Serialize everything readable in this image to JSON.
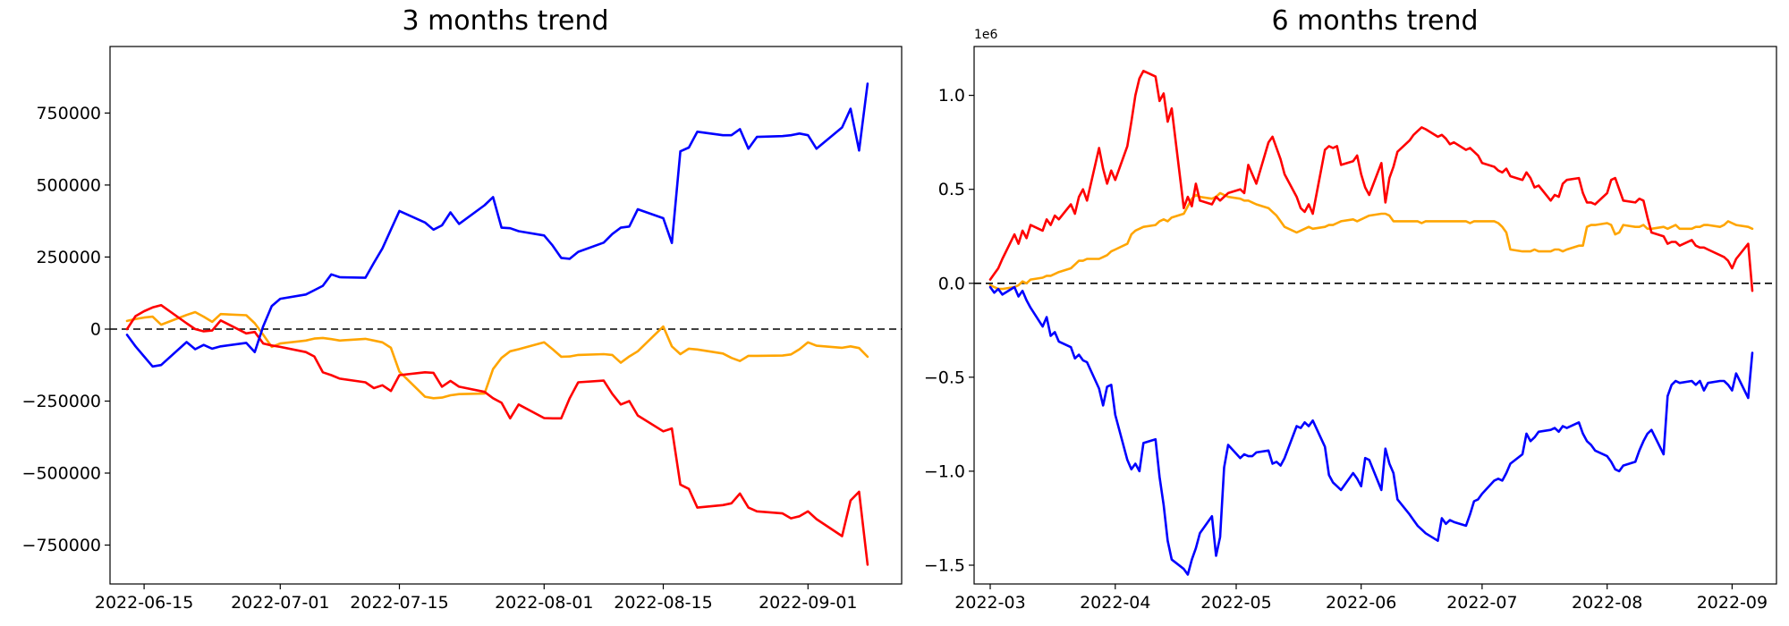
{
  "page": {
    "background_color": "#ffffff",
    "text_color": "#000000"
  },
  "chart_data": [
    {
      "type": "line",
      "title": "3 months trend",
      "xlabel": "",
      "ylabel": "",
      "legend": "none",
      "grid": false,
      "zero_line": {
        "value": 0,
        "style": "dashed",
        "color": "#000000"
      },
      "y_unit": 1,
      "y_axis_offset_label": "",
      "ylim": [
        -885000,
        981000
      ],
      "xlim": [
        "2022-06-11",
        "2022-09-12"
      ],
      "x_ticks": [
        {
          "date": "2022-06-15",
          "label": "2022-06-15"
        },
        {
          "date": "2022-07-01",
          "label": "2022-07-01"
        },
        {
          "date": "2022-07-15",
          "label": "2022-07-15"
        },
        {
          "date": "2022-08-01",
          "label": "2022-08-01"
        },
        {
          "date": "2022-08-15",
          "label": "2022-08-15"
        },
        {
          "date": "2022-09-01",
          "label": "2022-09-01"
        }
      ],
      "y_ticks": [
        {
          "value": 750000,
          "label": "750000"
        },
        {
          "value": 500000,
          "label": "500000"
        },
        {
          "value": 250000,
          "label": "250000"
        },
        {
          "value": 0,
          "label": "0"
        },
        {
          "value": -250000,
          "label": "−250000"
        },
        {
          "value": -500000,
          "label": "−500000"
        },
        {
          "value": -750000,
          "label": "−750000"
        }
      ],
      "dates": [
        "2022-06-13",
        "2022-06-14",
        "2022-06-15",
        "2022-06-16",
        "2022-06-17",
        "2022-06-20",
        "2022-06-21",
        "2022-06-22",
        "2022-06-23",
        "2022-06-24",
        "2022-06-27",
        "2022-06-28",
        "2022-06-29",
        "2022-06-30",
        "2022-07-01",
        "2022-07-04",
        "2022-07-05",
        "2022-07-06",
        "2022-07-07",
        "2022-07-08",
        "2022-07-11",
        "2022-07-12",
        "2022-07-13",
        "2022-07-14",
        "2022-07-15",
        "2022-07-18",
        "2022-07-19",
        "2022-07-20",
        "2022-07-21",
        "2022-07-22",
        "2022-07-25",
        "2022-07-26",
        "2022-07-27",
        "2022-07-28",
        "2022-07-29",
        "2022-08-01",
        "2022-08-02",
        "2022-08-03",
        "2022-08-04",
        "2022-08-05",
        "2022-08-08",
        "2022-08-09",
        "2022-08-10",
        "2022-08-11",
        "2022-08-12",
        "2022-08-15",
        "2022-08-16",
        "2022-08-17",
        "2022-08-18",
        "2022-08-19",
        "2022-08-22",
        "2022-08-23",
        "2022-08-24",
        "2022-08-25",
        "2022-08-26",
        "2022-08-29",
        "2022-08-30",
        "2022-08-31",
        "2022-09-01",
        "2022-09-02",
        "2022-09-05",
        "2022-09-06",
        "2022-09-07",
        "2022-09-08"
      ],
      "series": [
        {
          "name": "series-orange",
          "color": "#FFA500",
          "values": [
            28000,
            35000,
            40000,
            43000,
            15000,
            49000,
            59000,
            43000,
            25000,
            52000,
            48000,
            20000,
            -20000,
            -62000,
            -50000,
            -40000,
            -33000,
            -31000,
            -35000,
            -40000,
            -34000,
            -40000,
            -46000,
            -65000,
            -148000,
            -235000,
            -240000,
            -238000,
            -230000,
            -226000,
            -224000,
            -139000,
            -100000,
            -77000,
            -70000,
            -46000,
            -70000,
            -96000,
            -95000,
            -90000,
            -87000,
            -90000,
            -117000,
            -95000,
            -77000,
            9000,
            -60000,
            -87000,
            -68000,
            -71000,
            -85000,
            -100000,
            -111000,
            -93000,
            -93000,
            -92000,
            -88000,
            -70000,
            -46000,
            -58000,
            -65000,
            -60000,
            -66000,
            -96000
          ]
        },
        {
          "name": "series-red",
          "color": "#FF0000",
          "values": [
            0,
            45000,
            62000,
            75000,
            83000,
            20000,
            0,
            -8000,
            -5000,
            30000,
            -15000,
            -10000,
            -50000,
            -57000,
            -62000,
            -80000,
            -95000,
            -150000,
            -160000,
            -172000,
            -185000,
            -205000,
            -195000,
            -215000,
            -160000,
            -150000,
            -152000,
            -200000,
            -180000,
            -200000,
            -218000,
            -240000,
            -256000,
            -310000,
            -262000,
            -309000,
            -310000,
            -310000,
            -240000,
            -185000,
            -179000,
            -225000,
            -262000,
            -250000,
            -300000,
            -355000,
            -345000,
            -540000,
            -555000,
            -620000,
            -611000,
            -605000,
            -571000,
            -620000,
            -633000,
            -640000,
            -657000,
            -650000,
            -633000,
            -660000,
            -719000,
            -595000,
            -565000,
            -818000
          ]
        },
        {
          "name": "series-blue",
          "color": "#0000FF",
          "values": [
            -20000,
            -60000,
            -95000,
            -130000,
            -125000,
            -45000,
            -70000,
            -55000,
            -68000,
            -60000,
            -48000,
            -80000,
            10000,
            80000,
            105000,
            120000,
            135000,
            150000,
            190000,
            180000,
            178000,
            230000,
            280000,
            345000,
            410000,
            370000,
            345000,
            360000,
            405000,
            365000,
            430000,
            458000,
            352000,
            350000,
            340000,
            325000,
            290000,
            247000,
            244000,
            268000,
            300000,
            330000,
            352000,
            356000,
            416000,
            385000,
            299000,
            617000,
            630000,
            685000,
            673000,
            673000,
            694000,
            626000,
            667000,
            670000,
            673000,
            679000,
            673000,
            626000,
            700000,
            765000,
            620000,
            852000
          ]
        }
      ]
    },
    {
      "type": "line",
      "title": "6 months trend",
      "xlabel": "",
      "ylabel": "",
      "legend": "none",
      "grid": false,
      "zero_line": {
        "value": 0,
        "style": "dashed",
        "color": "#000000"
      },
      "y_unit": 1000000,
      "y_axis_offset_label": "1e6",
      "ylim": [
        -1600000,
        1260000
      ],
      "xlim": [
        "2022-02-25",
        "2022-09-12"
      ],
      "x_ticks": [
        {
          "date": "2022-03-01",
          "label": "2022-03"
        },
        {
          "date": "2022-04-01",
          "label": "2022-04"
        },
        {
          "date": "2022-05-01",
          "label": "2022-05"
        },
        {
          "date": "2022-06-01",
          "label": "2022-06"
        },
        {
          "date": "2022-07-01",
          "label": "2022-07"
        },
        {
          "date": "2022-08-01",
          "label": "2022-08"
        },
        {
          "date": "2022-09-01",
          "label": "2022-09"
        }
      ],
      "y_ticks": [
        {
          "value": 1000000,
          "label": "1.0"
        },
        {
          "value": 500000,
          "label": "0.5"
        },
        {
          "value": 0,
          "label": "0.0"
        },
        {
          "value": -500000,
          "label": "−0.5"
        },
        {
          "value": -1000000,
          "label": "−1.0"
        },
        {
          "value": -1500000,
          "label": "−1.5"
        }
      ],
      "dates": [
        "2022-03-01",
        "2022-03-02",
        "2022-03-03",
        "2022-03-04",
        "2022-03-07",
        "2022-03-08",
        "2022-03-09",
        "2022-03-10",
        "2022-03-11",
        "2022-03-14",
        "2022-03-15",
        "2022-03-16",
        "2022-03-17",
        "2022-03-18",
        "2022-03-21",
        "2022-03-22",
        "2022-03-23",
        "2022-03-24",
        "2022-03-25",
        "2022-03-28",
        "2022-03-29",
        "2022-03-30",
        "2022-03-31",
        "2022-04-01",
        "2022-04-04",
        "2022-04-05",
        "2022-04-06",
        "2022-04-07",
        "2022-04-08",
        "2022-04-11",
        "2022-04-12",
        "2022-04-13",
        "2022-04-14",
        "2022-04-15",
        "2022-04-18",
        "2022-04-19",
        "2022-04-20",
        "2022-04-21",
        "2022-04-22",
        "2022-04-25",
        "2022-04-26",
        "2022-04-27",
        "2022-04-28",
        "2022-04-29",
        "2022-05-02",
        "2022-05-03",
        "2022-05-04",
        "2022-05-05",
        "2022-05-06",
        "2022-05-09",
        "2022-05-10",
        "2022-05-11",
        "2022-05-12",
        "2022-05-13",
        "2022-05-16",
        "2022-05-17",
        "2022-05-18",
        "2022-05-19",
        "2022-05-20",
        "2022-05-23",
        "2022-05-24",
        "2022-05-25",
        "2022-05-26",
        "2022-05-27",
        "2022-05-30",
        "2022-05-31",
        "2022-06-01",
        "2022-06-02",
        "2022-06-03",
        "2022-06-06",
        "2022-06-07",
        "2022-06-08",
        "2022-06-09",
        "2022-06-10",
        "2022-06-13",
        "2022-06-14",
        "2022-06-15",
        "2022-06-16",
        "2022-06-17",
        "2022-06-20",
        "2022-06-21",
        "2022-06-22",
        "2022-06-23",
        "2022-06-24",
        "2022-06-27",
        "2022-06-28",
        "2022-06-29",
        "2022-06-30",
        "2022-07-01",
        "2022-07-04",
        "2022-07-05",
        "2022-07-06",
        "2022-07-07",
        "2022-07-08",
        "2022-07-11",
        "2022-07-12",
        "2022-07-13",
        "2022-07-14",
        "2022-07-15",
        "2022-07-18",
        "2022-07-19",
        "2022-07-20",
        "2022-07-21",
        "2022-07-22",
        "2022-07-25",
        "2022-07-26",
        "2022-07-27",
        "2022-07-28",
        "2022-07-29",
        "2022-08-01",
        "2022-08-02",
        "2022-08-03",
        "2022-08-04",
        "2022-08-05",
        "2022-08-08",
        "2022-08-09",
        "2022-08-10",
        "2022-08-11",
        "2022-08-12",
        "2022-08-15",
        "2022-08-16",
        "2022-08-17",
        "2022-08-18",
        "2022-08-19",
        "2022-08-22",
        "2022-08-23",
        "2022-08-24",
        "2022-08-25",
        "2022-08-26",
        "2022-08-29",
        "2022-08-30",
        "2022-08-31",
        "2022-09-01",
        "2022-09-02",
        "2022-09-05",
        "2022-09-06"
      ],
      "series": [
        {
          "name": "series-orange",
          "color": "#FFA500",
          "values": [
            -0.01,
            -0.02,
            -0.03,
            -0.03,
            -0.02,
            -0.01,
            0.01,
            0.0,
            0.02,
            0.03,
            0.04,
            0.04,
            0.05,
            0.06,
            0.08,
            0.1,
            0.12,
            0.12,
            0.13,
            0.13,
            0.14,
            0.15,
            0.17,
            0.18,
            0.21,
            0.26,
            0.28,
            0.29,
            0.3,
            0.31,
            0.33,
            0.34,
            0.33,
            0.35,
            0.37,
            0.41,
            0.45,
            0.47,
            0.46,
            0.45,
            0.46,
            0.48,
            0.47,
            0.46,
            0.45,
            0.44,
            0.44,
            0.43,
            0.42,
            0.4,
            0.38,
            0.36,
            0.33,
            0.3,
            0.27,
            0.28,
            0.29,
            0.3,
            0.29,
            0.3,
            0.31,
            0.31,
            0.32,
            0.33,
            0.34,
            0.33,
            0.34,
            0.35,
            0.36,
            0.37,
            0.37,
            0.36,
            0.33,
            0.33,
            0.33,
            0.33,
            0.33,
            0.32,
            0.33,
            0.33,
            0.33,
            0.33,
            0.33,
            0.33,
            0.33,
            0.32,
            0.33,
            0.33,
            0.33,
            0.33,
            0.32,
            0.3,
            0.27,
            0.18,
            0.17,
            0.17,
            0.17,
            0.18,
            0.17,
            0.17,
            0.18,
            0.18,
            0.17,
            0.18,
            0.2,
            0.2,
            0.3,
            0.31,
            0.31,
            0.32,
            0.31,
            0.26,
            0.27,
            0.31,
            0.3,
            0.3,
            0.31,
            0.29,
            0.29,
            0.3,
            0.29,
            0.3,
            0.31,
            0.29,
            0.29,
            0.3,
            0.3,
            0.31,
            0.31,
            0.3,
            0.31,
            0.33,
            0.32,
            0.31,
            0.3,
            0.29
          ]
        },
        {
          "name": "series-red",
          "color": "#FF0000",
          "values": [
            0.02,
            0.05,
            0.08,
            0.13,
            0.26,
            0.21,
            0.28,
            0.24,
            0.31,
            0.28,
            0.34,
            0.31,
            0.36,
            0.34,
            0.42,
            0.37,
            0.46,
            0.5,
            0.44,
            0.72,
            0.61,
            0.53,
            0.6,
            0.55,
            0.73,
            0.86,
            1.0,
            1.09,
            1.13,
            1.1,
            0.97,
            1.01,
            0.86,
            0.93,
            0.4,
            0.46,
            0.41,
            0.53,
            0.44,
            0.42,
            0.46,
            0.44,
            0.46,
            0.48,
            0.5,
            0.48,
            0.63,
            0.58,
            0.53,
            0.75,
            0.78,
            0.72,
            0.66,
            0.58,
            0.46,
            0.4,
            0.38,
            0.42,
            0.37,
            0.71,
            0.73,
            0.72,
            0.73,
            0.63,
            0.65,
            0.68,
            0.58,
            0.51,
            0.47,
            0.64,
            0.43,
            0.56,
            0.62,
            0.7,
            0.76,
            0.79,
            0.81,
            0.83,
            0.82,
            0.78,
            0.79,
            0.77,
            0.74,
            0.75,
            0.71,
            0.72,
            0.7,
            0.68,
            0.64,
            0.62,
            0.6,
            0.59,
            0.61,
            0.57,
            0.55,
            0.59,
            0.56,
            0.51,
            0.52,
            0.44,
            0.47,
            0.46,
            0.53,
            0.55,
            0.56,
            0.48,
            0.43,
            0.43,
            0.42,
            0.48,
            0.55,
            0.56,
            0.5,
            0.44,
            0.43,
            0.45,
            0.44,
            0.35,
            0.27,
            0.25,
            0.21,
            0.22,
            0.22,
            0.2,
            0.23,
            0.2,
            0.19,
            0.19,
            0.18,
            0.15,
            0.14,
            0.12,
            0.08,
            0.13,
            0.21,
            -0.04
          ]
        },
        {
          "name": "series-blue",
          "color": "#0000FF",
          "values": [
            -0.02,
            -0.05,
            -0.03,
            -0.06,
            -0.02,
            -0.07,
            -0.04,
            -0.09,
            -0.13,
            -0.23,
            -0.18,
            -0.28,
            -0.26,
            -0.31,
            -0.34,
            -0.4,
            -0.38,
            -0.41,
            -0.42,
            -0.56,
            -0.65,
            -0.55,
            -0.54,
            -0.7,
            -0.94,
            -0.99,
            -0.96,
            -1.0,
            -0.85,
            -0.83,
            -1.03,
            -1.18,
            -1.37,
            -1.47,
            -1.52,
            -1.55,
            -1.47,
            -1.41,
            -1.33,
            -1.24,
            -1.45,
            -1.35,
            -0.98,
            -0.86,
            -0.93,
            -0.91,
            -0.92,
            -0.92,
            -0.9,
            -0.89,
            -0.96,
            -0.95,
            -0.97,
            -0.93,
            -0.76,
            -0.77,
            -0.74,
            -0.76,
            -0.73,
            -0.87,
            -1.02,
            -1.06,
            -1.08,
            -1.1,
            -1.01,
            -1.04,
            -1.08,
            -0.93,
            -0.94,
            -1.1,
            -0.88,
            -0.96,
            -1.01,
            -1.15,
            -1.23,
            -1.26,
            -1.29,
            -1.31,
            -1.33,
            -1.37,
            -1.25,
            -1.28,
            -1.26,
            -1.27,
            -1.29,
            -1.23,
            -1.16,
            -1.15,
            -1.12,
            -1.05,
            -1.04,
            -1.05,
            -1.01,
            -0.96,
            -0.91,
            -0.8,
            -0.84,
            -0.82,
            -0.79,
            -0.78,
            -0.77,
            -0.79,
            -0.76,
            -0.77,
            -0.74,
            -0.8,
            -0.84,
            -0.86,
            -0.89,
            -0.92,
            -0.95,
            -0.99,
            -1.0,
            -0.97,
            -0.95,
            -0.89,
            -0.84,
            -0.8,
            -0.78,
            -0.91,
            -0.6,
            -0.54,
            -0.52,
            -0.53,
            -0.52,
            -0.54,
            -0.52,
            -0.57,
            -0.53,
            -0.52,
            -0.52,
            -0.54,
            -0.57,
            -0.48,
            -0.61,
            -0.37
          ]
        }
      ]
    }
  ]
}
